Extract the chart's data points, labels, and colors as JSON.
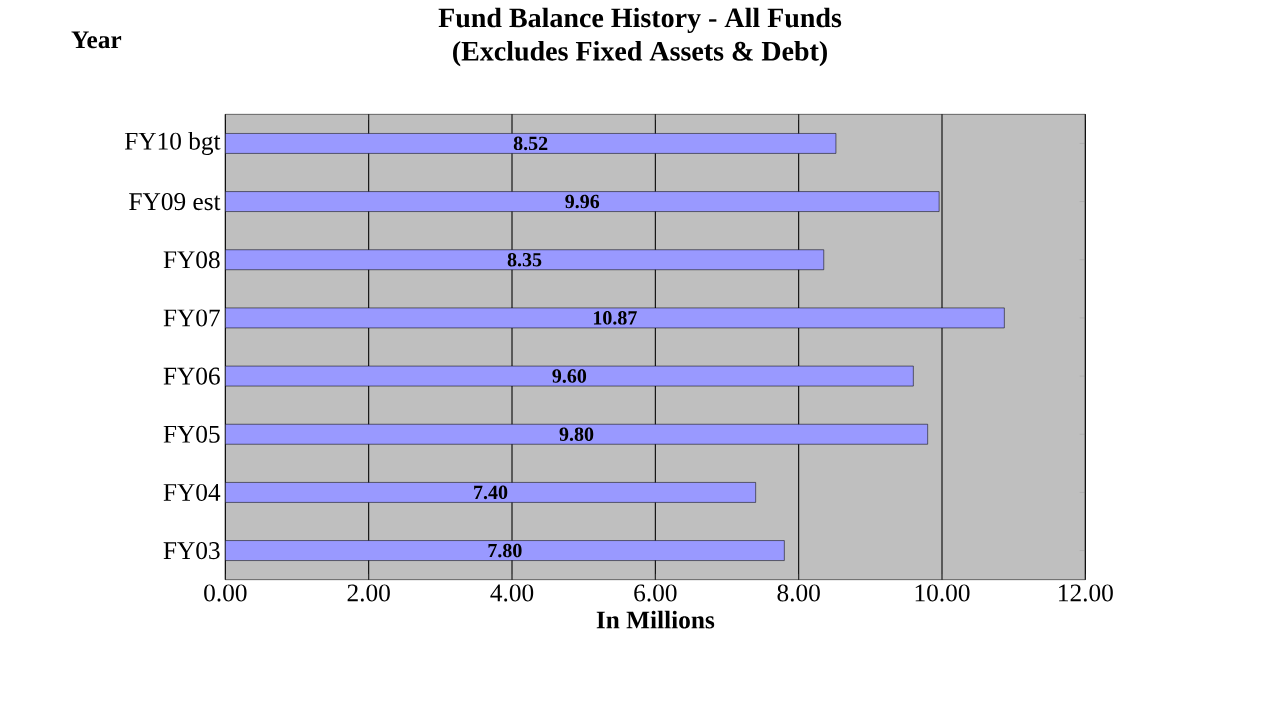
{
  "chart_data": {
    "type": "bar",
    "orientation": "horizontal",
    "title": "Fund Balance History - All Funds",
    "subtitle": "(Excludes Fixed Assets & Debt)",
    "ylabel": "Year",
    "xlabel": "In Millions",
    "categories": [
      "FY10 bgt",
      "FY09 est",
      "FY08",
      "FY07",
      "FY06",
      "FY05",
      "FY04",
      "FY03"
    ],
    "values": [
      8.52,
      9.96,
      8.35,
      10.87,
      9.6,
      9.8,
      7.4,
      7.8
    ],
    "value_labels": [
      "8.52",
      "9.96",
      "8.35",
      "10.87",
      "9.60",
      "9.80",
      "7.40",
      "7.80"
    ],
    "color": "#9999ff",
    "xlim": [
      0,
      12
    ],
    "xticks": [
      {
        "value": 0,
        "label": "0.00"
      },
      {
        "value": 2,
        "label": "2.00"
      },
      {
        "value": 4,
        "label": "4.00"
      },
      {
        "value": 6,
        "label": "6.00"
      },
      {
        "value": 8,
        "label": "8.00"
      },
      {
        "value": 10,
        "label": "10.00"
      },
      {
        "value": 12,
        "label": "12.00"
      }
    ],
    "grid": "x",
    "legend": false
  }
}
